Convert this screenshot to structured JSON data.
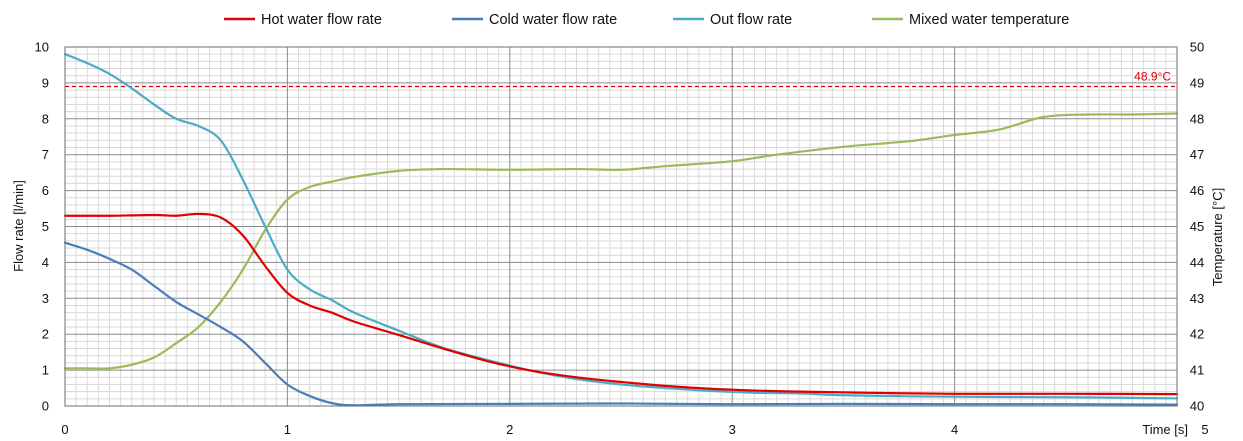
{
  "chart_data": {
    "type": "line",
    "xlabel": "Time [s]",
    "ylabel": "Flow rate [l/min]",
    "y2label": "Temperature [°C]",
    "xlim": [
      0,
      5
    ],
    "ylim": [
      0,
      10
    ],
    "y2lim": [
      40,
      50
    ],
    "x_ticks": [
      "0",
      "1",
      "2",
      "3",
      "4",
      "5"
    ],
    "y_ticks": [
      "0",
      "1",
      "2",
      "3",
      "4",
      "5",
      "6",
      "7",
      "8",
      "9",
      "10"
    ],
    "y2_ticks": [
      "40",
      "41",
      "42",
      "43",
      "44",
      "45",
      "46",
      "47",
      "48",
      "49",
      "50"
    ],
    "grid": true,
    "legend_position": "top",
    "reference_line": {
      "axis": "y2",
      "value": 48.9,
      "label": "48.9°C",
      "color": "#e00000",
      "style": "dashed"
    },
    "series": [
      {
        "name": "Hot water flow rate",
        "axis": "y",
        "color": "#e00000",
        "points": [
          [
            0,
            5.3
          ],
          [
            0.2,
            5.3
          ],
          [
            0.4,
            5.32
          ],
          [
            0.5,
            5.3
          ],
          [
            0.6,
            5.35
          ],
          [
            0.7,
            5.25
          ],
          [
            0.8,
            4.75
          ],
          [
            0.9,
            3.9
          ],
          [
            1.0,
            3.15
          ],
          [
            1.1,
            2.8
          ],
          [
            1.2,
            2.6
          ],
          [
            1.3,
            2.35
          ],
          [
            1.5,
            1.98
          ],
          [
            1.7,
            1.6
          ],
          [
            1.9,
            1.25
          ],
          [
            2.1,
            0.98
          ],
          [
            2.3,
            0.8
          ],
          [
            2.5,
            0.67
          ],
          [
            2.7,
            0.56
          ],
          [
            2.9,
            0.48
          ],
          [
            3.1,
            0.43
          ],
          [
            3.3,
            0.4
          ],
          [
            3.5,
            0.38
          ],
          [
            3.7,
            0.36
          ],
          [
            4.0,
            0.34
          ],
          [
            4.5,
            0.34
          ],
          [
            5.0,
            0.33
          ]
        ]
      },
      {
        "name": "Cold water flow rate",
        "axis": "y",
        "color": "#4a7ebb",
        "points": [
          [
            0,
            4.55
          ],
          [
            0.1,
            4.35
          ],
          [
            0.2,
            4.1
          ],
          [
            0.3,
            3.8
          ],
          [
            0.4,
            3.35
          ],
          [
            0.5,
            2.9
          ],
          [
            0.6,
            2.55
          ],
          [
            0.7,
            2.2
          ],
          [
            0.8,
            1.8
          ],
          [
            0.9,
            1.2
          ],
          [
            1.0,
            0.6
          ],
          [
            1.1,
            0.28
          ],
          [
            1.2,
            0.08
          ],
          [
            1.3,
            0.02
          ],
          [
            1.5,
            0.05
          ],
          [
            2.0,
            0.06
          ],
          [
            2.5,
            0.07
          ],
          [
            3.0,
            0.05
          ],
          [
            3.5,
            0.06
          ],
          [
            4.0,
            0.05
          ],
          [
            4.5,
            0.05
          ],
          [
            5.0,
            0.04
          ]
        ]
      },
      {
        "name": "Out flow rate",
        "axis": "y",
        "color": "#4bacc6",
        "points": [
          [
            0,
            9.8
          ],
          [
            0.1,
            9.55
          ],
          [
            0.2,
            9.25
          ],
          [
            0.3,
            8.85
          ],
          [
            0.4,
            8.4
          ],
          [
            0.5,
            8.0
          ],
          [
            0.6,
            7.8
          ],
          [
            0.7,
            7.4
          ],
          [
            0.8,
            6.3
          ],
          [
            0.9,
            5.0
          ],
          [
            1.0,
            3.8
          ],
          [
            1.1,
            3.25
          ],
          [
            1.2,
            2.95
          ],
          [
            1.3,
            2.6
          ],
          [
            1.5,
            2.1
          ],
          [
            1.7,
            1.62
          ],
          [
            1.9,
            1.28
          ],
          [
            2.1,
            0.98
          ],
          [
            2.3,
            0.75
          ],
          [
            2.5,
            0.6
          ],
          [
            2.7,
            0.5
          ],
          [
            2.9,
            0.42
          ],
          [
            3.1,
            0.37
          ],
          [
            3.3,
            0.35
          ],
          [
            3.5,
            0.3
          ],
          [
            3.8,
            0.27
          ],
          [
            4.2,
            0.25
          ],
          [
            4.6,
            0.24
          ],
          [
            5.0,
            0.21
          ]
        ]
      },
      {
        "name": "Mixed water temperature",
        "axis": "y2",
        "color": "#9bbb59",
        "points": [
          [
            0,
            41.05
          ],
          [
            0.1,
            41.05
          ],
          [
            0.2,
            41.05
          ],
          [
            0.3,
            41.15
          ],
          [
            0.4,
            41.35
          ],
          [
            0.5,
            41.75
          ],
          [
            0.6,
            42.2
          ],
          [
            0.7,
            42.9
          ],
          [
            0.8,
            43.8
          ],
          [
            0.9,
            44.9
          ],
          [
            1.0,
            45.75
          ],
          [
            1.1,
            46.1
          ],
          [
            1.2,
            46.25
          ],
          [
            1.3,
            46.38
          ],
          [
            1.5,
            46.55
          ],
          [
            1.7,
            46.6
          ],
          [
            2.0,
            46.58
          ],
          [
            2.3,
            46.6
          ],
          [
            2.5,
            46.58
          ],
          [
            2.7,
            46.68
          ],
          [
            3.0,
            46.82
          ],
          [
            3.2,
            47.0
          ],
          [
            3.5,
            47.22
          ],
          [
            3.8,
            47.38
          ],
          [
            4.0,
            47.55
          ],
          [
            4.2,
            47.7
          ],
          [
            4.4,
            48.05
          ],
          [
            4.6,
            48.12
          ],
          [
            4.8,
            48.12
          ],
          [
            5.0,
            48.15
          ]
        ]
      }
    ]
  }
}
